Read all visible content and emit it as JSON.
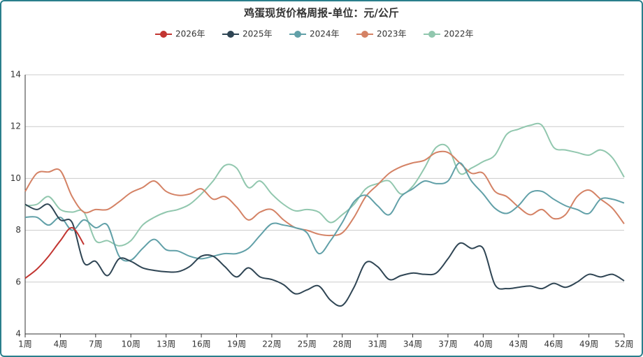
{
  "chart_data": {
    "type": "line",
    "title": "鸡蛋现货价格周报-单位：元/公斤",
    "categories": [
      "1周",
      null,
      null,
      "4周",
      null,
      null,
      "7周",
      null,
      null,
      "10周",
      null,
      null,
      "13周",
      null,
      null,
      "16周",
      null,
      null,
      "19周",
      null,
      null,
      "22周",
      null,
      null,
      "25周",
      null,
      null,
      "28周",
      null,
      null,
      "31周",
      null,
      null,
      "34周",
      null,
      null,
      "37周",
      null,
      null,
      "40周",
      null,
      null,
      "43周",
      null,
      null,
      "46周",
      null,
      null,
      "49周",
      null,
      null,
      "52周"
    ],
    "ylim": [
      4,
      14
    ],
    "yticks": [
      4,
      6,
      8,
      10,
      12,
      14
    ],
    "grid": true,
    "smooth": true,
    "legend": "top",
    "series": [
      {
        "name": "2026年",
        "color": "#c23531",
        "values": [
          6.15,
          6.5,
          7.0,
          7.6,
          8.1,
          7.45,
          null,
          null,
          null,
          null,
          null,
          null,
          null,
          null,
          null,
          null,
          null,
          null,
          null,
          null,
          null,
          null,
          null,
          null,
          null,
          null,
          null,
          null,
          null,
          null,
          null,
          null,
          null,
          null,
          null,
          null,
          null,
          null,
          null,
          null,
          null,
          null,
          null,
          null,
          null,
          null,
          null,
          null,
          null,
          null,
          null,
          null
        ]
      },
      {
        "name": "2025年",
        "color": "#2f4554",
        "values": [
          9.0,
          8.8,
          9.0,
          8.4,
          8.3,
          6.75,
          6.8,
          6.25,
          6.9,
          6.8,
          6.55,
          6.45,
          6.4,
          6.4,
          6.6,
          7.0,
          7.0,
          6.6,
          6.2,
          6.55,
          6.2,
          6.1,
          5.9,
          5.55,
          5.7,
          5.85,
          5.3,
          5.1,
          5.8,
          6.75,
          6.6,
          6.1,
          6.25,
          6.35,
          6.3,
          6.35,
          6.9,
          7.5,
          7.3,
          7.3,
          5.9,
          5.75,
          5.8,
          5.85,
          5.75,
          5.95,
          5.8,
          6.0,
          6.3,
          6.2,
          6.3,
          6.05
        ]
      },
      {
        "name": "2024年",
        "color": "#61a0a8",
        "values": [
          8.5,
          8.5,
          8.2,
          8.5,
          8.0,
          8.4,
          8.1,
          8.2,
          7.0,
          6.85,
          7.3,
          7.65,
          7.25,
          7.2,
          7.0,
          6.9,
          7.0,
          7.1,
          7.1,
          7.3,
          7.8,
          8.25,
          8.2,
          8.1,
          7.9,
          7.1,
          7.6,
          8.3,
          9.1,
          9.35,
          8.95,
          8.6,
          9.3,
          9.6,
          9.9,
          9.8,
          9.9,
          10.6,
          9.9,
          9.4,
          8.85,
          8.65,
          8.95,
          9.45,
          9.5,
          9.2,
          8.95,
          8.8,
          8.65,
          9.2,
          9.2,
          9.05
        ]
      },
      {
        "name": "2023年",
        "color": "#d48265",
        "values": [
          9.5,
          10.2,
          10.25,
          10.3,
          9.3,
          8.7,
          8.8,
          8.8,
          9.1,
          9.45,
          9.65,
          9.9,
          9.5,
          9.35,
          9.4,
          9.6,
          9.2,
          9.3,
          8.9,
          8.4,
          8.7,
          8.8,
          8.4,
          8.1,
          8.0,
          7.85,
          7.8,
          7.9,
          8.5,
          9.3,
          9.75,
          10.2,
          10.45,
          10.6,
          10.7,
          11.0,
          11.0,
          10.6,
          10.2,
          10.2,
          9.5,
          9.3,
          8.9,
          8.6,
          8.8,
          8.45,
          8.6,
          9.3,
          9.55,
          9.2,
          8.85,
          8.25
        ]
      },
      {
        "name": "2022年",
        "color": "#91c7ae",
        "values": [
          8.95,
          9.0,
          9.3,
          8.8,
          8.7,
          8.7,
          7.6,
          7.6,
          7.4,
          7.6,
          8.2,
          8.5,
          8.7,
          8.8,
          9.0,
          9.4,
          9.9,
          10.5,
          10.4,
          9.65,
          9.9,
          9.4,
          9.0,
          8.75,
          8.8,
          8.7,
          8.3,
          8.6,
          9.0,
          9.6,
          9.8,
          9.9,
          9.4,
          9.7,
          10.4,
          11.2,
          11.2,
          10.2,
          10.4,
          10.65,
          10.9,
          11.7,
          11.9,
          12.05,
          12.05,
          11.2,
          11.1,
          11.0,
          10.9,
          11.1,
          10.8,
          10.05
        ]
      }
    ]
  }
}
